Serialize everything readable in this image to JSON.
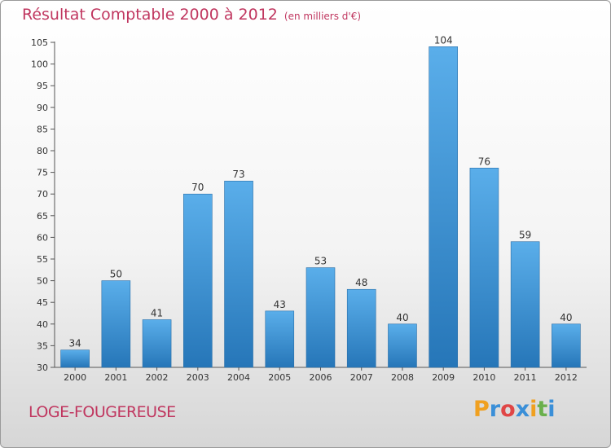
{
  "title": "Résultat Comptable 2000 à 2012",
  "subtitle": "(en milliers d'€)",
  "commune": "LOGE-FOUGEREUSE",
  "logo": {
    "letters": [
      {
        "ch": "P",
        "color": "#f0a020"
      },
      {
        "ch": "r",
        "color": "#3a8fd8"
      },
      {
        "ch": "o",
        "color": "#e04646"
      },
      {
        "ch": "x",
        "color": "#3a8fd8"
      },
      {
        "ch": "i",
        "color": "#f0a020"
      },
      {
        "ch": "t",
        "color": "#6ab04c"
      },
      {
        "ch": "i",
        "color": "#3a8fd8"
      }
    ]
  },
  "colors": {
    "bar_top": "#5aaeea",
    "bar_bottom": "#2676b8",
    "text_accent": "#c0365f"
  },
  "chart_data": {
    "type": "bar",
    "title": "Résultat Comptable 2000 à 2012",
    "subtitle": "(en milliers d'€)",
    "categories": [
      "2000",
      "2001",
      "2002",
      "2003",
      "2004",
      "2005",
      "2006",
      "2007",
      "2008",
      "2009",
      "2010",
      "2011",
      "2012"
    ],
    "values": [
      34,
      50,
      41,
      70,
      73,
      43,
      53,
      48,
      40,
      104,
      76,
      59,
      40
    ],
    "ylim": [
      30,
      105
    ],
    "yticks": [
      30,
      35,
      40,
      45,
      50,
      55,
      60,
      65,
      70,
      75,
      80,
      85,
      90,
      95,
      100,
      105
    ],
    "grid": false,
    "legend": "none"
  }
}
